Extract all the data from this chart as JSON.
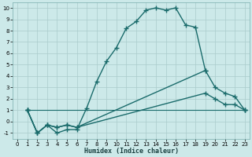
{
  "xlabel": "Humidex (Indice chaleur)",
  "background_color": "#cce9e9",
  "grid_color": "#aacccc",
  "line_color": "#1a6b6b",
  "xlim": [
    -0.5,
    23.5
  ],
  "ylim": [
    -1.5,
    10.5
  ],
  "xticks": [
    0,
    1,
    2,
    3,
    4,
    5,
    6,
    7,
    8,
    9,
    10,
    11,
    12,
    13,
    14,
    15,
    16,
    17,
    18,
    19,
    20,
    21,
    22,
    23
  ],
  "yticks": [
    -1,
    0,
    1,
    2,
    3,
    4,
    5,
    6,
    7,
    8,
    9,
    10
  ],
  "series": [
    {
      "x": [
        1,
        2,
        3,
        4,
        5,
        6,
        7,
        8,
        9,
        10,
        11,
        12,
        13,
        14,
        15,
        16,
        17,
        18,
        19
      ],
      "y": [
        1,
        -1,
        -0.3,
        -1,
        -0.7,
        -0.7,
        1.2,
        3.5,
        5.3,
        6.5,
        8.2,
        8.8,
        9.8,
        10.0,
        9.8,
        10.0,
        8.5,
        8.3,
        4.5
      ],
      "marker": "+",
      "markersize": 4,
      "linewidth": 1.0
    },
    {
      "x": [
        1,
        2,
        3,
        4,
        5,
        6,
        19,
        20,
        21,
        22,
        23
      ],
      "y": [
        1,
        -1,
        -0.3,
        -0.5,
        -0.3,
        -0.5,
        4.5,
        3.0,
        2.5,
        2.2,
        1.0
      ],
      "marker": "+",
      "markersize": 4,
      "linewidth": 1.0
    },
    {
      "x": [
        1,
        2,
        3,
        4,
        5,
        6,
        19,
        20,
        21,
        22,
        23
      ],
      "y": [
        1,
        -1,
        -0.3,
        -0.5,
        -0.3,
        -0.5,
        2.5,
        2.0,
        1.5,
        1.5,
        1.0
      ],
      "marker": "+",
      "markersize": 4,
      "linewidth": 1.0
    },
    {
      "x": [
        1,
        23
      ],
      "y": [
        1,
        1.0
      ],
      "marker": "+",
      "markersize": 4,
      "linewidth": 0.8
    }
  ]
}
